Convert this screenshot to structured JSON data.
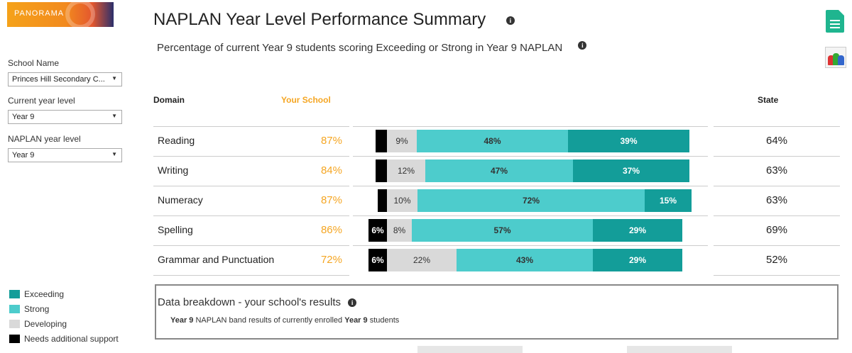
{
  "brand": {
    "logo_text": "PANORAMA"
  },
  "filters": {
    "school_name": {
      "label": "School Name",
      "value": "Princes Hill Secondary C..."
    },
    "current_year_level": {
      "label": "Current year level",
      "value": "Year 9"
    },
    "naplan_year_level": {
      "label": "NAPLAN year level",
      "value": "Year 9"
    }
  },
  "header": {
    "title": "NAPLAN Year Level Performance Summary",
    "subtitle": "Percentage of current Year 9 students scoring Exceeding or Strong in Year 9 NAPLAN"
  },
  "table": {
    "col_domain": "Domain",
    "col_school": "Your School",
    "col_state": "State",
    "rows": [
      {
        "domain": "Reading",
        "school": "87%",
        "state": "64%",
        "bands": {
          "needs": "",
          "developing": "9%",
          "strong": "48%",
          "exceeding": "39%"
        }
      },
      {
        "domain": "Writing",
        "school": "84%",
        "state": "63%",
        "bands": {
          "needs": "",
          "developing": "12%",
          "strong": "47%",
          "exceeding": "37%"
        }
      },
      {
        "domain": "Numeracy",
        "school": "87%",
        "state": "63%",
        "bands": {
          "needs": "",
          "developing": "10%",
          "strong": "72%",
          "exceeding": "15%"
        }
      },
      {
        "domain": "Spelling",
        "school": "86%",
        "state": "69%",
        "bands": {
          "needs": "6%",
          "developing": "8%",
          "strong": "57%",
          "exceeding": "29%"
        }
      },
      {
        "domain": "Grammar and Punctuation",
        "school": "72%",
        "state": "52%",
        "bands": {
          "needs": "6%",
          "developing": "22%",
          "strong": "43%",
          "exceeding": "29%"
        }
      }
    ]
  },
  "legend": [
    {
      "label": "Exceeding",
      "color": "#139d99"
    },
    {
      "label": "Strong",
      "color": "#4dcccc"
    },
    {
      "label": "Developing",
      "color": "#d9d9d9"
    },
    {
      "label": "Needs additional support",
      "color": "#000000"
    }
  ],
  "breakdown": {
    "title": "Data breakdown - your school's results",
    "subtitle_bold_1": "Year 9",
    "subtitle_mid": "NAPLAN band results of currently enrolled",
    "subtitle_bold_2": "Year 9",
    "subtitle_end": "students"
  },
  "icons": {
    "info": "info-icon",
    "export": "document-export-icon",
    "users": "users-report-icon"
  }
}
